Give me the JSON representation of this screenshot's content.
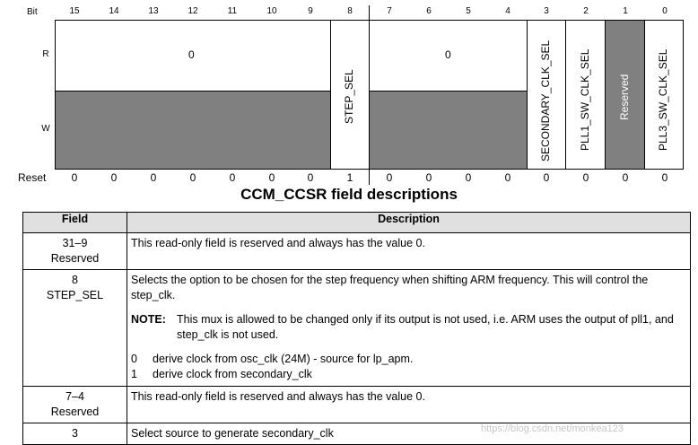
{
  "register": {
    "bit_header": "Bit",
    "bits": [
      "15",
      "14",
      "13",
      "12",
      "11",
      "10",
      "9",
      "8",
      "7",
      "6",
      "5",
      "4",
      "3",
      "2",
      "1",
      "0"
    ],
    "row_read": "R",
    "row_write": "W",
    "reset_label": "Reset",
    "reset_values": [
      "0",
      "0",
      "0",
      "0",
      "0",
      "0",
      "0",
      "1",
      "0",
      "0",
      "0",
      "0",
      "0",
      "0",
      "0",
      "0"
    ],
    "reserved_high_value": "0",
    "reserved_low_value": "0",
    "field_step_sel": "STEP_SEL",
    "field_secondary": "SECONDARY_CLK_SEL",
    "field_pll1": "PLL1_SW_CLK_SEL",
    "field_reserved": "Reserved",
    "field_pll3": "PLL3_SW_CLK_SEL",
    "colors": {
      "reserved_fill": "#808080",
      "field_fill": "#ffffff"
    }
  },
  "title": "CCM_CCSR field descriptions",
  "table": {
    "header_field": "Field",
    "header_description": "Description",
    "rows": [
      {
        "field_num": "31–9",
        "field_name": "Reserved",
        "desc": "This read-only field is reserved and always has the value 0."
      },
      {
        "field_num": "8",
        "field_name": "STEP_SEL",
        "desc": "Selects the option to be chosen for the step frequency when shifting ARM frequency. This will control the step_clk.",
        "note_label": "NOTE:",
        "note_text": "This mux is allowed to be changed only if its output is not used, i.e. ARM uses the output of pll1, and step_clk is not used.",
        "options": [
          {
            "key": "0",
            "text": "derive clock from osc_clk (24M) - source for lp_apm."
          },
          {
            "key": "1",
            "text": "derive clock from secondary_clk"
          }
        ]
      },
      {
        "field_num": "7–4",
        "field_name": "Reserved",
        "desc": "This read-only field is reserved and always has the value 0."
      },
      {
        "field_num": "3",
        "field_name": "",
        "desc": "Select source to generate secondary_clk"
      }
    ]
  },
  "watermark": "https://blog.csdn.net/monkea123"
}
